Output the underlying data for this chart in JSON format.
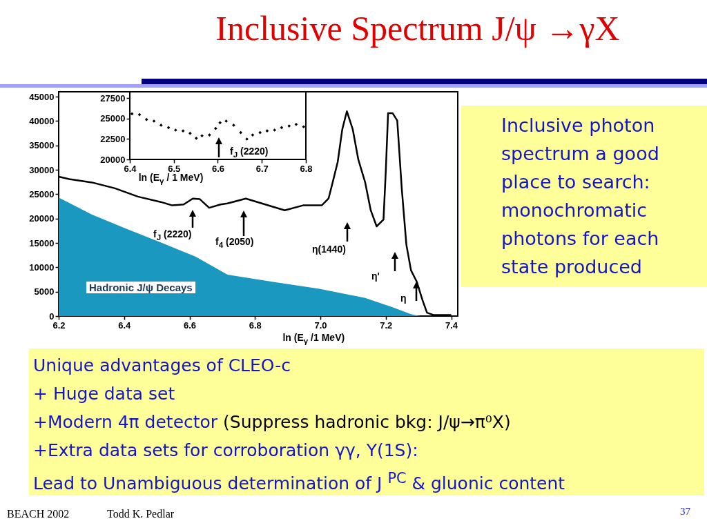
{
  "chart_data": [
    {
      "type": "line",
      "title": "Inclusive Spectrum J/ψ →γX",
      "xlabel": "ln (E$_{γ}$ /1 MeV)",
      "xlim": [
        6.2,
        7.42
      ],
      "xticks": [
        6.2,
        6.4,
        6.6,
        6.8,
        {
          "value": 7,
          "label": "7.0"
        },
        7.2,
        7.4
      ],
      "ylim": [
        0,
        46000
      ],
      "yticks": [
        0,
        5000,
        10000,
        15000,
        20000,
        25000,
        30000,
        35000,
        40000,
        45000
      ],
      "series": [
        {
          "type": "area",
          "name": "Hadronic J/ψ Decays",
          "color": "#1b98c0",
          "x": [
            6.2,
            6.302,
            6.407,
            6.512,
            6.618,
            6.716,
            6.856,
            6.997,
            7.137,
            7.221,
            7.277,
            7.305
          ],
          "values": [
            24300,
            20800,
            17900,
            15100,
            12200,
            8500,
            7000,
            5600,
            3700,
            1800,
            400,
            0
          ]
        },
        {
          "type": "line",
          "color": "#000000",
          "x": [
            6.2,
            6.232,
            6.302,
            6.372,
            6.442,
            6.512,
            6.547,
            6.582,
            6.61,
            6.631,
            6.66,
            6.695,
            6.716,
            6.772,
            6.821,
            6.891,
            6.947,
            7.004,
            7.025,
            7.039,
            7.053,
            7.067,
            7.081,
            7.099,
            7.116,
            7.137,
            7.154,
            7.172,
            7.193,
            7.2,
            7.207,
            7.221,
            7.235,
            7.249,
            7.263,
            7.277,
            7.295,
            7.312,
            7.326,
            7.347,
            7.4
          ],
          "values": [
            28600,
            28100,
            27400,
            26200,
            24500,
            23400,
            22700,
            22900,
            24100,
            24000,
            22200,
            22900,
            23100,
            24100,
            23100,
            21700,
            22700,
            22700,
            24100,
            27800,
            31600,
            38300,
            42000,
            38300,
            32100,
            27400,
            21700,
            18400,
            19800,
            29700,
            41600,
            41600,
            40100,
            26000,
            14600,
            9400,
            7000,
            3300,
            700,
            200,
            200
          ]
        }
      ],
      "annotations": [
        "f$_{J}$ (2220)",
        "f$_{4}$ (2050)",
        "η(1440)",
        "η'",
        "η",
        "Inclusive photon spectrum a good place to search: monochromatic photons for each state produced",
        "Unique advantages of CLEO-c",
        "+ Huge data set",
        "+Modern 4π detector",
        "(Suppress hadronic bkg: J/ψ→π⁰X)",
        "+Extra data sets for corroboration γγ, Υ(1S):",
        "Lead to Unambiguous determination of J $^{PC}$ & gluonic content",
        "BEACH 2002",
        "Todd K. Pedlar",
        "37"
      ]
    },
    {
      "type": "scatter",
      "xlabel": "ln (E$_{γ}$ / 1 MeV)",
      "xlim": [
        6.4,
        6.8
      ],
      "xticks": [
        6.4,
        6.5,
        6.6,
        6.7,
        6.8
      ],
      "ylim": [
        20000,
        28300
      ],
      "yticks": [
        20000,
        22500,
        25000,
        27500
      ],
      "marker": "diamond",
      "color": "#000000",
      "x": [
        6.405,
        6.422,
        6.438,
        6.455,
        6.471,
        6.488,
        6.504,
        6.521,
        6.537,
        6.551,
        6.564,
        6.581,
        6.595,
        6.605,
        6.619,
        6.636,
        6.652,
        6.666,
        6.679,
        6.696,
        6.712,
        6.729,
        6.745,
        6.762,
        6.778,
        6.795
      ],
      "values": [
        25600,
        25500,
        24900,
        24700,
        24200,
        23900,
        23600,
        23500,
        23200,
        22600,
        22900,
        23000,
        23800,
        24500,
        24700,
        24200,
        23300,
        22500,
        23000,
        23300,
        23500,
        23600,
        23900,
        24100,
        24300,
        24000
      ],
      "annotations": [
        "f$_{J}$ (2220)"
      ]
    }
  ]
}
